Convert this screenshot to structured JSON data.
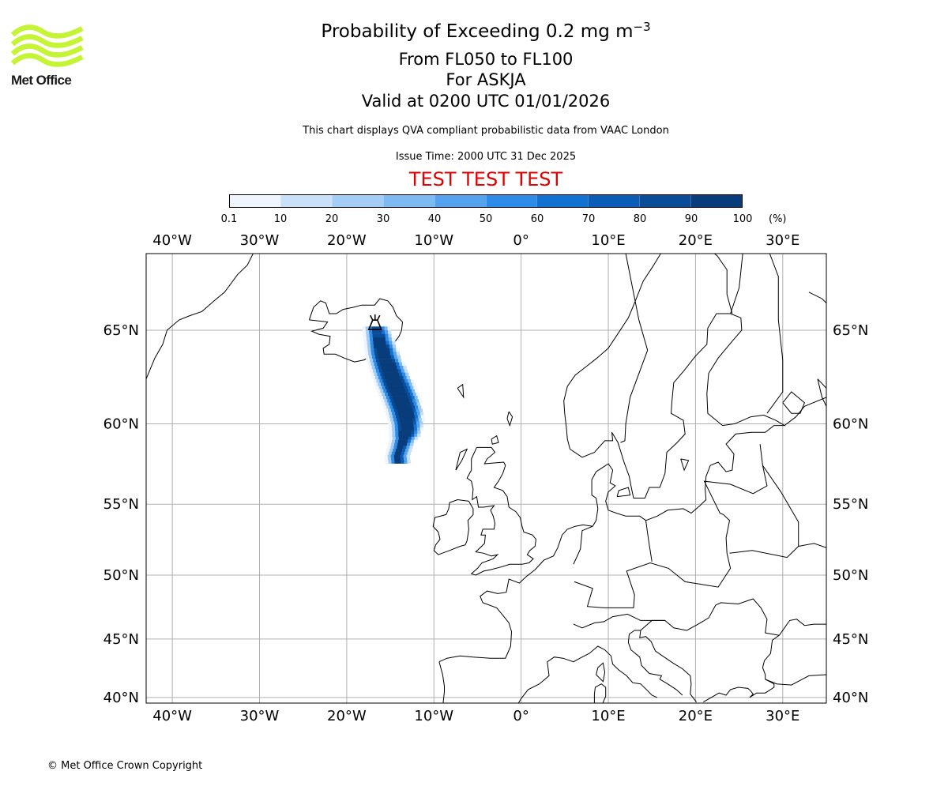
{
  "titles": {
    "line1_main": "Probability of Exceeding 0.2 mg m",
    "line1_superscript": "−3",
    "line2": "From FL050 to FL100",
    "line3": "For ASKJA",
    "line4": "Valid at 0200 UTC 01/01/2026"
  },
  "subtitle": "This chart displays QVA compliant probabilistic data from VAAC London",
  "issue_time": "Issue Time: 2000 UTC 31 Dec 2025",
  "test_banner": "TEST TEST TEST",
  "colorbar": {
    "ticks": [
      "0.1",
      "10",
      "20",
      "30",
      "40",
      "50",
      "60",
      "70",
      "80",
      "90",
      "100"
    ],
    "unit": "(%)",
    "colors": [
      "#eef5fd",
      "#c8e0f8",
      "#a4cdf5",
      "#7dbaf2",
      "#55a3ee",
      "#2d8ce8",
      "#1172d2",
      "#0a5db6",
      "#094c98",
      "#083c7a",
      "#06295a"
    ]
  },
  "logo": {
    "text": "Met Office",
    "icon": "met-office-wave-logo",
    "color": "#c4f433"
  },
  "copyright": "© Met Office Crown Copyright",
  "map": {
    "lon_range": [
      -43,
      35
    ],
    "lat_range": [
      39.5,
      68.5
    ],
    "lon_ticks": [
      {
        "value": -40,
        "label": "40°W"
      },
      {
        "value": -30,
        "label": "30°W"
      },
      {
        "value": -20,
        "label": "20°W"
      },
      {
        "value": -10,
        "label": "10°W"
      },
      {
        "value": 0,
        "label": "0°"
      },
      {
        "value": 10,
        "label": "10°E"
      },
      {
        "value": 20,
        "label": "20°E"
      },
      {
        "value": 30,
        "label": "30°E"
      }
    ],
    "lat_ticks": [
      {
        "value": 65,
        "label": "65°N"
      },
      {
        "value": 60,
        "label": "60°N"
      },
      {
        "value": 55,
        "label": "55°N"
      },
      {
        "value": 50,
        "label": "50°N"
      },
      {
        "value": 45,
        "label": "45°N"
      },
      {
        "value": 40,
        "label": "40°N"
      }
    ],
    "volcano": {
      "name": "ASKJA",
      "lon": -16.75,
      "lat": 65.03,
      "icon": "volcano-icon"
    }
  }
}
